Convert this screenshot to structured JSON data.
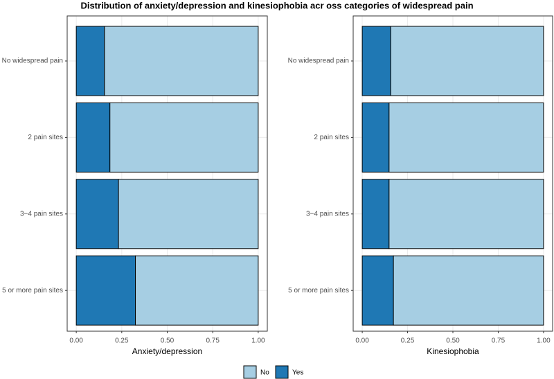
{
  "title": "Distribution of anxiety/depression and kinesiophobia acr oss categories of widespread pain",
  "chart_data": [
    {
      "type": "bar",
      "orientation": "horizontal",
      "stacked": true,
      "xlabel": "Anxiety/depression",
      "categories": [
        "No widespread pain",
        "2 pain sites",
        "3−4 pain sites",
        "5 or more pain sites"
      ],
      "series": [
        {
          "name": "Yes",
          "color": "#1f78b4",
          "values": [
            0.155,
            0.185,
            0.232,
            0.325
          ]
        },
        {
          "name": "No",
          "color": "#a6cee3",
          "values": [
            0.845,
            0.815,
            0.768,
            0.675
          ]
        }
      ],
      "xlim": [
        -0.05,
        1.05
      ],
      "xticks": [
        {
          "value": 0,
          "label": "0.00"
        },
        {
          "value": 0.25,
          "label": "0.25"
        },
        {
          "value": 0.5,
          "label": "0.50"
        },
        {
          "value": 0.75,
          "label": "0.75"
        },
        {
          "value": 1,
          "label": "1.00"
        }
      ],
      "grid": true
    },
    {
      "type": "bar",
      "orientation": "horizontal",
      "stacked": true,
      "xlabel": "Kinesiophobia",
      "categories": [
        "No widespread pain",
        "2 pain sites",
        "3−4 pain sites",
        "5 or more pain sites"
      ],
      "series": [
        {
          "name": "Yes",
          "color": "#1f78b4",
          "values": [
            0.157,
            0.148,
            0.148,
            0.172
          ]
        },
        {
          "name": "No",
          "color": "#a6cee3",
          "values": [
            0.843,
            0.852,
            0.852,
            0.828
          ]
        }
      ],
      "xlim": [
        -0.05,
        1.05
      ],
      "xticks": [
        {
          "value": 0,
          "label": "0.00"
        },
        {
          "value": 0.25,
          "label": "0.25"
        },
        {
          "value": 0.5,
          "label": "0.50"
        },
        {
          "value": 0.75,
          "label": "0.75"
        },
        {
          "value": 1,
          "label": "1.00"
        }
      ],
      "grid": true
    }
  ]
}
